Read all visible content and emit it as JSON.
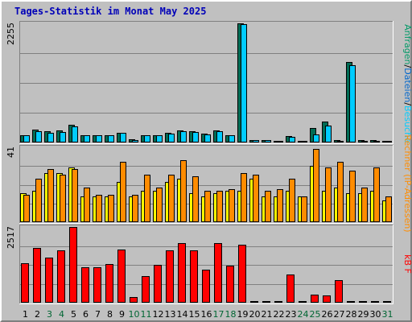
{
  "chart_data": {
    "type": "bar",
    "title": "Tages-Statistik im Monat May 2025",
    "categories": [
      "1",
      "2",
      "3",
      "4",
      "5",
      "6",
      "7",
      "8",
      "9",
      "10",
      "11",
      "12",
      "13",
      "14",
      "15",
      "16",
      "17",
      "18",
      "19",
      "20",
      "21",
      "22",
      "23",
      "24",
      "25",
      "26",
      "27",
      "28",
      "29",
      "30",
      "31"
    ],
    "category_colors": [
      "#000000",
      "#000000",
      "#006633",
      "#006633",
      "#000000",
      "#000000",
      "#000000",
      "#000000",
      "#000000",
      "#006633",
      "#006633",
      "#000000",
      "#000000",
      "#000000",
      "#000000",
      "#000000",
      "#006633",
      "#006633",
      "#000000",
      "#000000",
      "#000000",
      "#000000",
      "#000000",
      "#006633",
      "#006633",
      "#000000",
      "#000000",
      "#000000",
      "#000000",
      "#000000",
      "#006633"
    ],
    "panels": [
      {
        "ymax": 2255,
        "ymax_label": "2255",
        "series": [
          {
            "name": "Besuche",
            "color": "#006b54",
            "values": [
              140,
              250,
              210,
              230,
              330,
              140,
              140,
              140,
              190,
              60,
              140,
              140,
              180,
              230,
              210,
              170,
              230,
              140,
              2255,
              50,
              50,
              30,
              120,
              20,
              270,
              400,
              40,
              1530,
              40,
              40,
              20
            ]
          },
          {
            "name": "Rechner",
            "color": "#00ccff",
            "values": [
              130,
              220,
              180,
              200,
              310,
              140,
              140,
              140,
              180,
              50,
              130,
              130,
              170,
              210,
              200,
              150,
              210,
              130,
              2240,
              40,
              40,
              20,
              110,
              30,
              150,
              320,
              30,
              1470,
              30,
              30,
              20
            ]
          }
        ],
        "legend": [
          {
            "label": "Anfragen",
            "color": "#009966"
          },
          {
            "label": "/",
            "color": "#000000"
          },
          {
            "label": "Dateien",
            "color": "#0066cc"
          },
          {
            "label": "/",
            "color": "#000000"
          },
          {
            "label": "Besuche",
            "color": "#00ccff"
          }
        ]
      },
      {
        "ymax": 41,
        "ymax_label": "41",
        "series": [
          {
            "name": "Rechner",
            "color": "#ffff00",
            "values": [
              16,
              17,
              27,
              27,
              30,
              14,
              14,
              14,
              22,
              14,
              17,
              17,
              22,
              24,
              16,
              14,
              16,
              17,
              17,
              24,
              14,
              14,
              17,
              14,
              31,
              17,
              19,
              16,
              16,
              17,
              12
            ]
          },
          {
            "name": "",
            "color": "#ff8c00",
            "values": [
              15,
              24,
              29,
              26,
              29,
              19,
              15,
              15,
              33,
              15,
              26,
              19,
              26,
              34,
              25,
              17,
              17,
              18,
              27,
              26,
              17,
              18,
              24,
              14,
              40,
              30,
              33,
              28,
              19,
              30,
              14
            ]
          }
        ],
        "legend": [
          {
            "label": "Rechner",
            "color": "#ff8c00"
          },
          {
            "label": "(IP-Adressen)",
            "color": "#ff8c00"
          }
        ]
      },
      {
        "ymax": 2517,
        "ymax_label": "2517",
        "series": [
          {
            "name": "kB F",
            "color": "#ff0000",
            "values": [
              1320,
              1810,
              1500,
              1750,
              2517,
              1170,
              1170,
              1290,
              1770,
              190,
              880,
              1260,
              1730,
              1980,
              1740,
              1110,
              1990,
              1240,
              1940,
              50,
              50,
              50,
              950,
              50,
              280,
              250,
              760,
              50,
              50,
              50,
              50
            ]
          }
        ],
        "legend": [
          {
            "label": "kB F",
            "color": "#ff0000"
          }
        ]
      }
    ]
  }
}
